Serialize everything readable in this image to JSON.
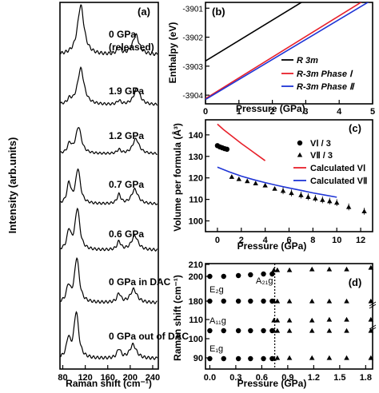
{
  "chart_data": [
    {
      "panel": "(a)",
      "type": "line",
      "xlabel": "Raman shift (cm⁻¹)",
      "ylabel": "Intensity (arb.units)",
      "xlim": [
        75,
        250
      ],
      "xticks": [
        80,
        120,
        160,
        200,
        240
      ],
      "spectra": [
        {
          "label": "0 GPa",
          "label2": "(released)",
          "peaks": [
            [
              112,
              1.0,
              7
            ],
            [
              180,
              0.15,
              4
            ],
            [
              210,
              0.4,
              7
            ]
          ]
        },
        {
          "label": "1.9 GPa",
          "peaks": [
            [
              92,
              0.12,
              4
            ],
            [
              112,
              0.95,
              7
            ],
            [
              180,
              0.1,
              4
            ],
            [
              212,
              0.42,
              7
            ]
          ]
        },
        {
          "label": "1.2 GPa",
          "peaks": [
            [
              92,
              0.28,
              4
            ],
            [
              108,
              0.8,
              6
            ],
            [
              180,
              0.12,
              4
            ],
            [
              210,
              0.45,
              7
            ]
          ]
        },
        {
          "label": "0.7 GPa",
          "peaks": [
            [
              91,
              0.55,
              4
            ],
            [
              107,
              0.95,
              5
            ],
            [
              180,
              0.25,
              4
            ],
            [
              208,
              0.4,
              7
            ]
          ]
        },
        {
          "label": "0.6 GPa",
          "peaks": [
            [
              91,
              0.45,
              4
            ],
            [
              106,
              1.0,
              5
            ],
            [
              180,
              0.2,
              4
            ],
            [
              208,
              0.35,
              7
            ]
          ]
        },
        {
          "label": "0 GPa in DAC",
          "peaks": [
            [
              90,
              0.35,
              4
            ],
            [
              105,
              1.0,
              5
            ],
            [
              180,
              0.2,
              4
            ],
            [
              206,
              0.3,
              7
            ]
          ]
        },
        {
          "label": "0 GPa out of DAC",
          "peaks": [
            [
              90,
              0.4,
              4
            ],
            [
              104,
              1.0,
              5
            ],
            [
              180,
              0.2,
              4
            ],
            [
              205,
              0.3,
              7
            ]
          ]
        }
      ]
    },
    {
      "panel": "(b)",
      "type": "line",
      "xlabel": "Pressure (GPa)",
      "ylabel": "Enthalpy (eV)",
      "xlim": [
        0,
        5
      ],
      "ylim": [
        -3904.3,
        -3900.8
      ],
      "xticks": [
        0,
        1,
        2,
        3,
        4,
        5
      ],
      "yticks": [
        -3901,
        -3902,
        -3903,
        -3904
      ],
      "series": [
        {
          "name": "R 3m",
          "color": "#000000",
          "x": [
            0,
            5
          ],
          "y": [
            -3902.82,
            -3899.3
          ]
        },
        {
          "name": "R-3m Phase Ⅰ",
          "color": "#e8202a",
          "x": [
            0,
            5
          ],
          "y": [
            -3904.12,
            -3900.55
          ]
        },
        {
          "name": "R-3m Phase Ⅱ",
          "color": "#1f35d6",
          "x": [
            0,
            5
          ],
          "y": [
            -3904.15,
            -3900.7
          ]
        }
      ]
    },
    {
      "panel": "(c)",
      "type": "scatter",
      "xlabel": "Pressure (GPa)",
      "ylabel": "Volume per formula (Å³)",
      "xlim": [
        -1,
        13
      ],
      "ylim": [
        95,
        147
      ],
      "xticks": [
        0,
        2,
        4,
        6,
        8,
        10,
        12
      ],
      "yticks": [
        100,
        110,
        120,
        130,
        140
      ],
      "series": [
        {
          "name": "VⅠ / 3",
          "marker": "circle",
          "color": "#000000",
          "x": [
            0.0,
            0.2,
            0.4,
            0.6,
            0.8
          ],
          "y": [
            135.0,
            134.4,
            134.0,
            133.6,
            133.3
          ]
        },
        {
          "name": "VⅡ / 3",
          "marker": "triangle",
          "color": "#000000",
          "x": [
            1.2,
            1.8,
            2.5,
            3.2,
            4.0,
            4.8,
            5.5,
            6.2,
            7.0,
            7.6,
            8.2,
            8.8,
            9.4,
            10.0,
            11.0,
            12.3
          ],
          "y": [
            120.5,
            119.5,
            118.5,
            117.5,
            116.5,
            115.0,
            114.0,
            113.0,
            112.0,
            111.2,
            110.5,
            109.8,
            109.2,
            108.5,
            106.5,
            104.5
          ]
        },
        {
          "name": "Calculated VⅠ",
          "type": "line",
          "color": "#e8202a",
          "x": [
            0.0,
            0.5,
            1.0,
            1.5,
            2.0,
            2.5,
            3.0,
            3.5,
            4.0
          ],
          "y": [
            145.0,
            142.5,
            140.3,
            138.2,
            136.0,
            134.0,
            132.0,
            130.0,
            128.0
          ]
        },
        {
          "name": "Calculated VⅡ",
          "type": "line",
          "color": "#1f35d6",
          "x": [
            0.0,
            1.0,
            2.0,
            3.0,
            4.0,
            5.0,
            6.0,
            7.0,
            8.0,
            9.0,
            10.0
          ],
          "y": [
            125.0,
            122.8,
            120.8,
            119.2,
            117.8,
            116.5,
            115.3,
            114.2,
            113.0,
            112.0,
            111.0
          ]
        }
      ]
    },
    {
      "panel": "(d)",
      "type": "scatter",
      "xlabel": "Pressure (GPa)",
      "ylabel": "Raman shift (cm⁻¹)",
      "xlim": [
        -0.05,
        1.88
      ],
      "xticks": [
        "0.0",
        "0.3",
        "0.6",
        "0.9",
        "1.2",
        "1.5",
        "1.8"
      ],
      "yticks": [
        90,
        100,
        110,
        180,
        200,
        210
      ],
      "phase_boundary": 0.75,
      "mode_labels": [
        "E₂g",
        "A₂₁g",
        "E₁g",
        "A₁₁g"
      ],
      "circles": {
        "x": [
          0.0,
          0.16,
          0.33,
          0.47,
          0.62,
          0.72
        ],
        "rows": [
          {
            "y": 202,
            "values": [
              202,
              202,
              203,
              204,
              205,
              205
            ]
          },
          {
            "y": 180,
            "values": [
              180,
              180,
              180,
              180,
              180,
              180
            ]
          },
          {
            "y": 105,
            "values": [
              105,
              105,
              105,
              105,
              105,
              105
            ]
          },
          {
            "y": 89,
            "values": [
              89,
              89,
              89,
              89,
              89,
              89
            ]
          }
        ]
      },
      "triangles": {
        "x": [
          0.74,
          0.78,
          0.92,
          1.18,
          1.38,
          1.58,
          1.86
        ],
        "rows": [
          {
            "y": 209,
            "values": [
              208,
              208,
              208,
              209,
              209,
              209,
              210
            ]
          },
          {
            "y": 180,
            "values": [
              180,
              180,
              180,
              180,
              180,
              180,
              180
            ]
          },
          {
            "y": 110,
            "values": [
              109,
              109,
              109,
              109,
              110,
              110,
              110
            ]
          },
          {
            "y": 105,
            "values": [
              105,
              105,
              105,
              105,
              105,
              105,
              105
            ]
          },
          {
            "y": 89,
            "values": [
              89,
              90,
              90,
              90,
              90,
              90,
              90
            ]
          }
        ]
      }
    }
  ]
}
